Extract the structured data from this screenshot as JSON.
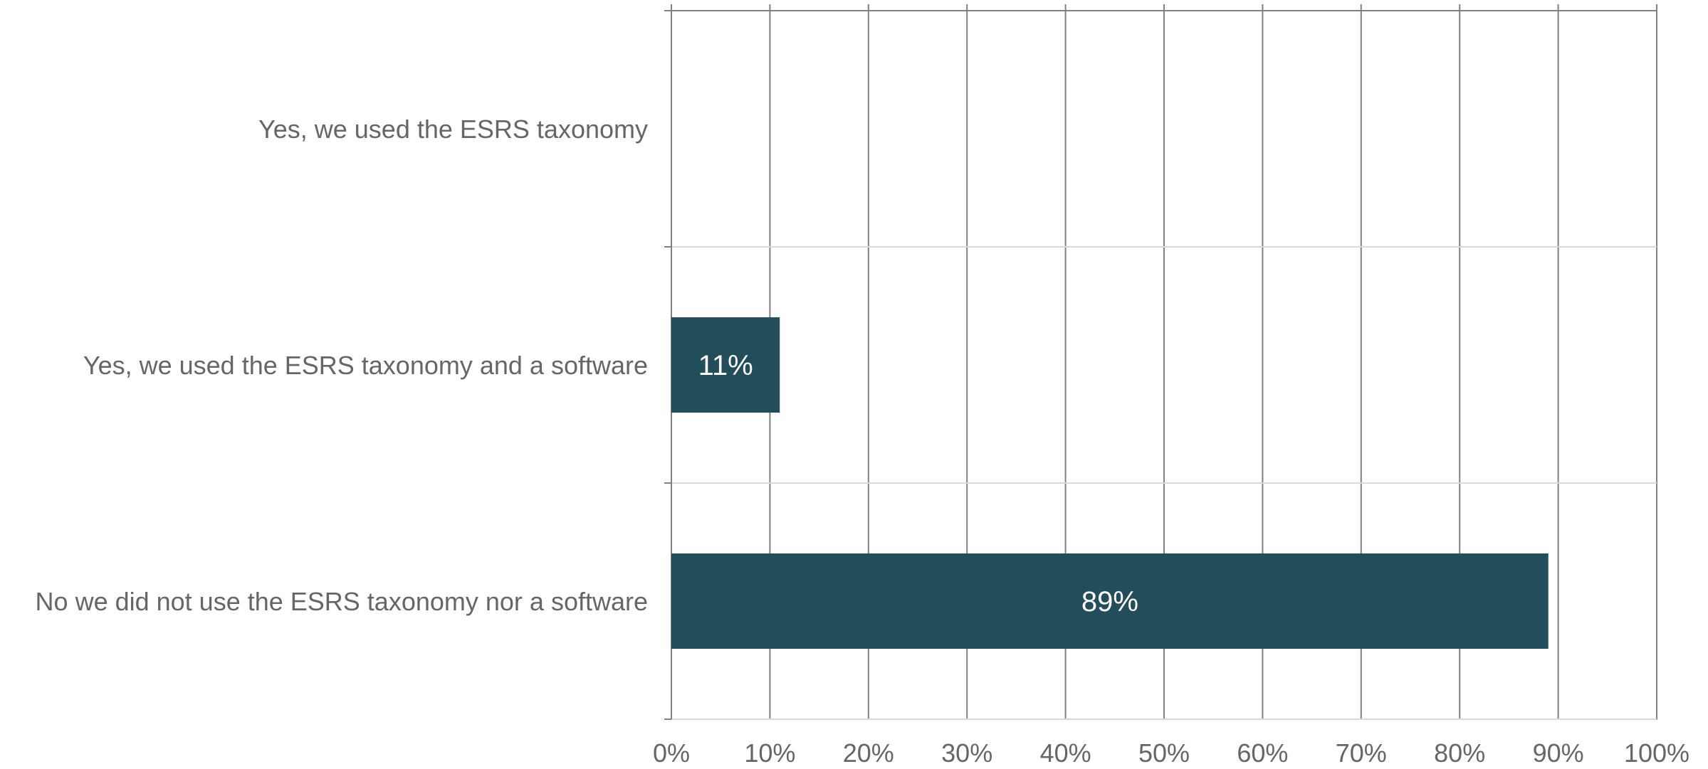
{
  "chart_data": {
    "type": "bar",
    "orientation": "horizontal",
    "categories": [
      "Yes, we used the ESRS taxonomy",
      "Yes, we used the ESRS taxonomy and a software",
      "No we did not use the ESRS taxonomy nor a software"
    ],
    "values": [
      0,
      11,
      89
    ],
    "data_labels": [
      "",
      "11%",
      "89%"
    ],
    "title": "",
    "xlabel": "",
    "ylabel": "",
    "xlim": [
      0,
      100
    ],
    "x_ticks": [
      0,
      10,
      20,
      30,
      40,
      50,
      60,
      70,
      80,
      90,
      100
    ],
    "x_tick_labels": [
      "0%",
      "10%",
      "20%",
      "30%",
      "40%",
      "50%",
      "60%",
      "70%",
      "80%",
      "90%",
      "100%"
    ],
    "grid": true,
    "legend": "none",
    "colors": {
      "bar": "#224d5a",
      "bar_label": "#ffffff",
      "text": "#666666",
      "gridline": "#808080",
      "axis": "#d9d9d9"
    }
  }
}
